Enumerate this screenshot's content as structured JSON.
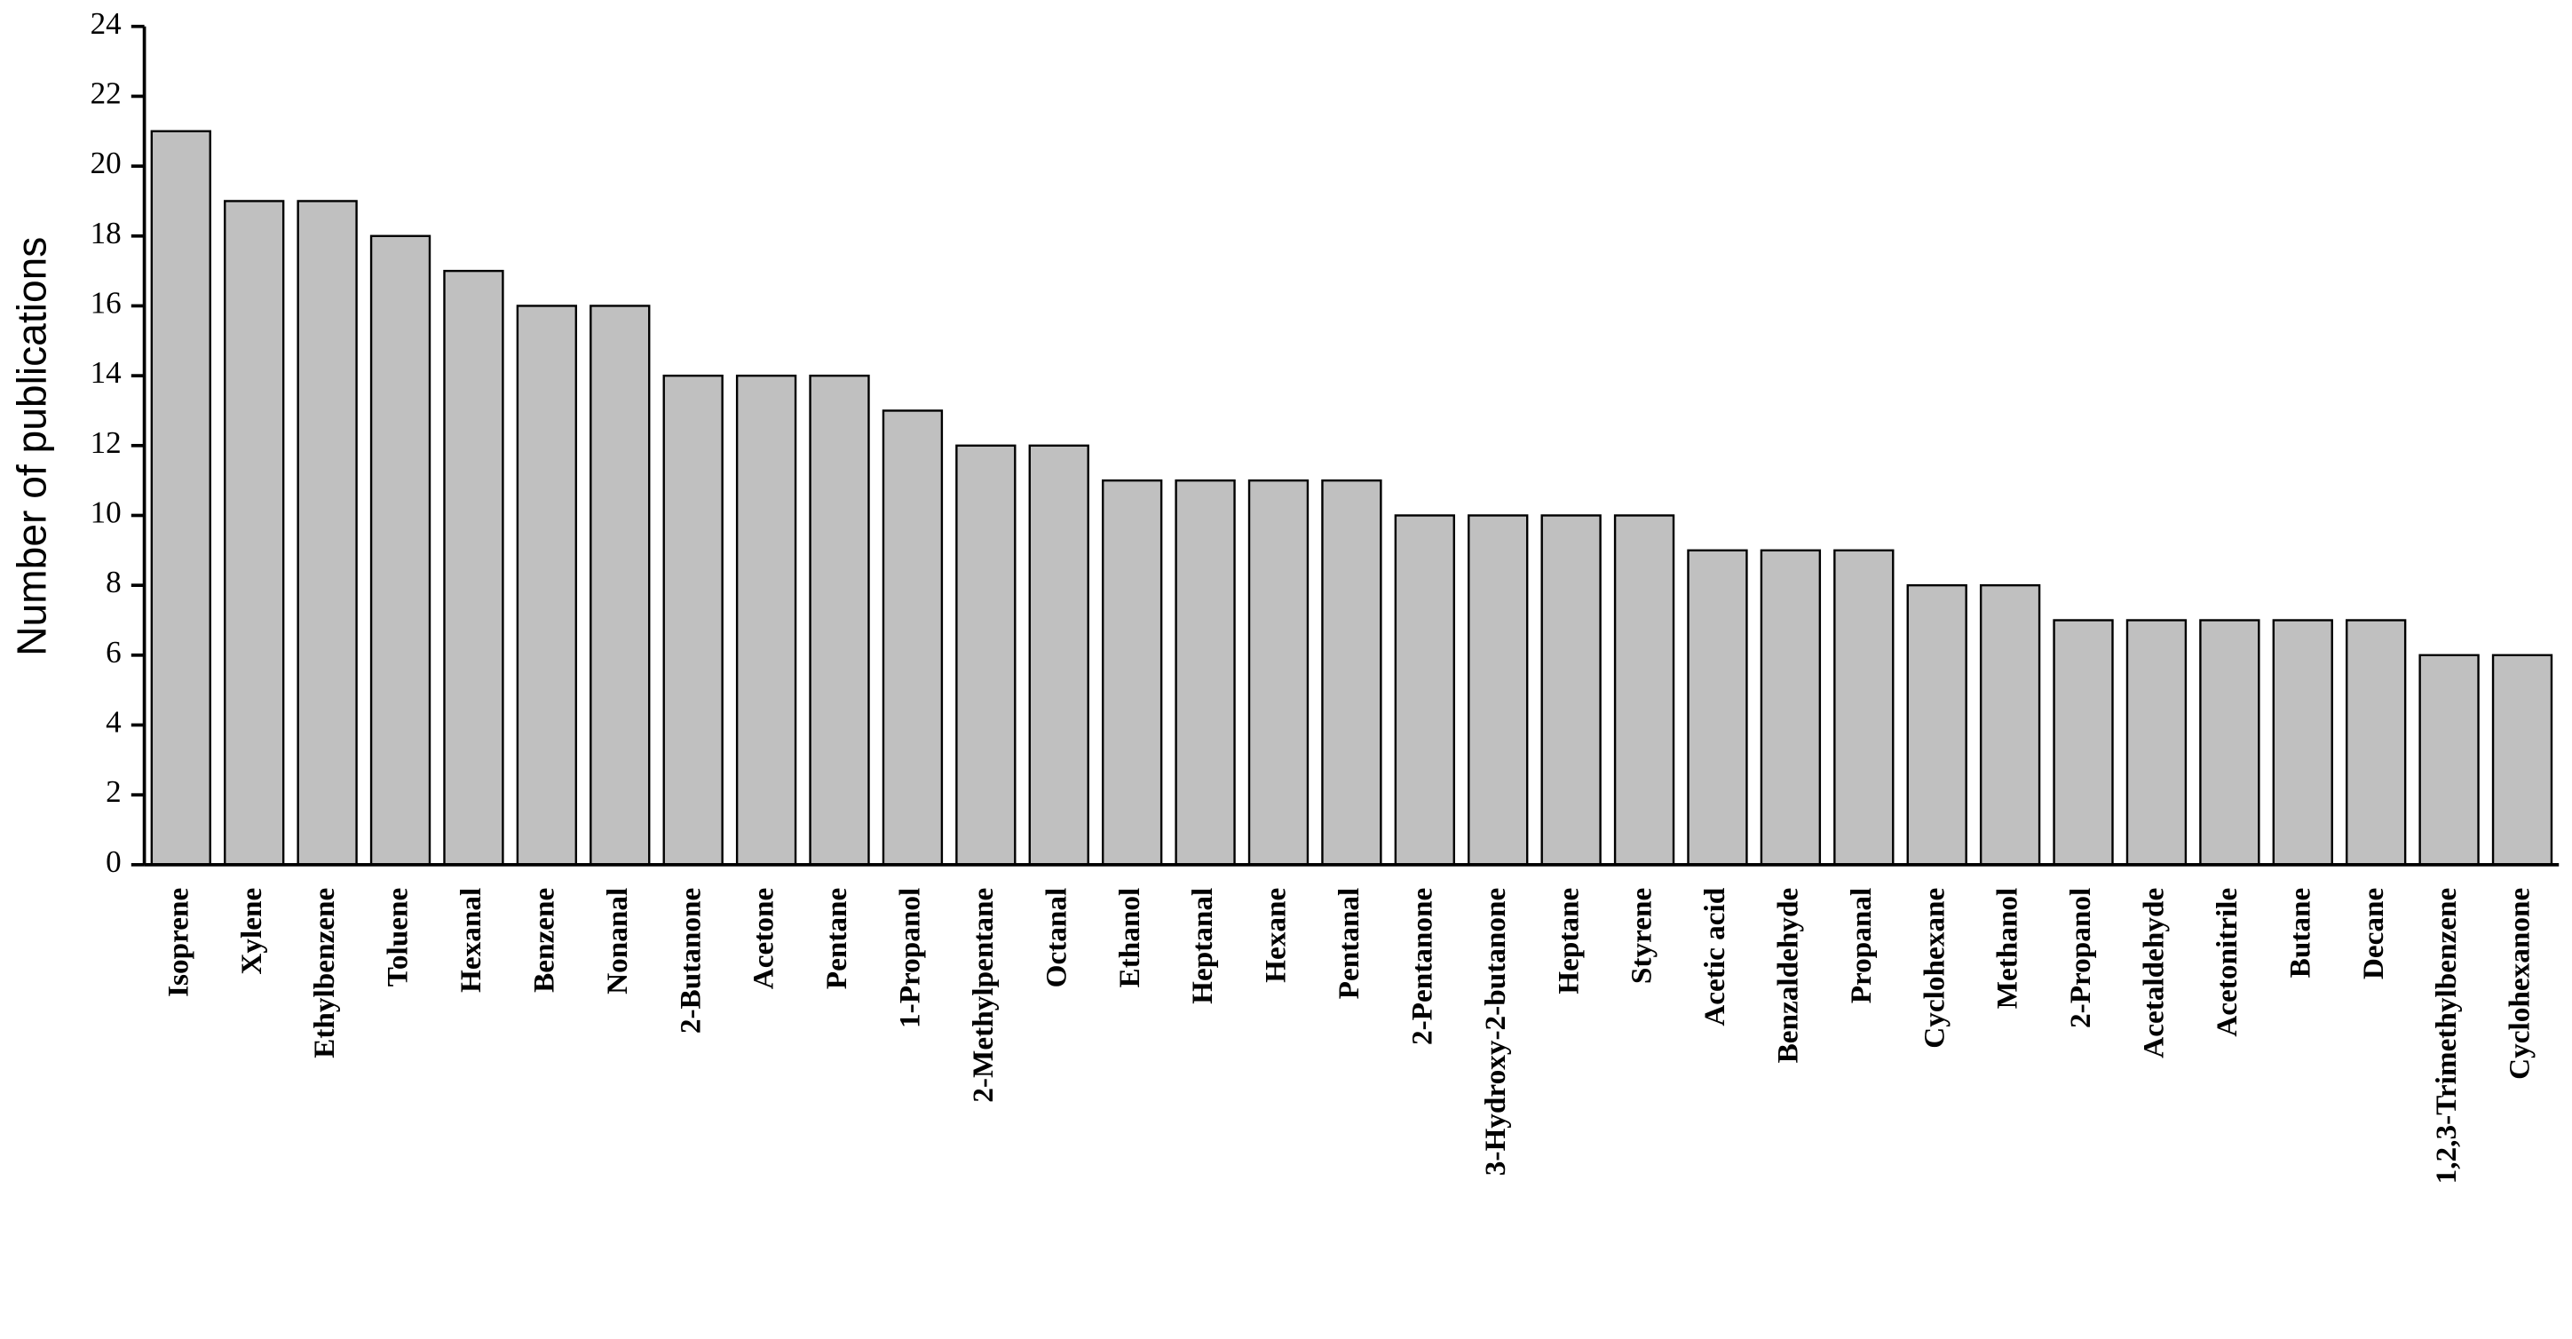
{
  "chart_data": {
    "type": "bar",
    "y_label": "Number of publications",
    "categories": [
      "Isoprene",
      "Xylene",
      "Ethylbenzene",
      "Toluene",
      "Hexanal",
      "Benzene",
      "Nonanal",
      "2-Butanone",
      "Acetone",
      "Pentane",
      "1-Propanol",
      "2-Methylpentane",
      "Octanal",
      "Ethanol",
      "Heptanal",
      "Hexane",
      "Pentanal",
      "2-Pentanone",
      "3-Hydroxy-2-butanone",
      "Heptane",
      "Styrene",
      "Acetic acid",
      "Benzaldehyde",
      "Propanal",
      "Cyclohexane",
      "Methanol",
      "2-Propanol",
      "Acetaldehyde",
      "Acetonitrile",
      "Butane",
      "Decane",
      "1,2,3-Trimethylbenzene",
      "Cyclohexanone"
    ],
    "values": [
      21,
      19,
      19,
      18,
      17,
      16,
      16,
      14,
      14,
      14,
      13,
      12,
      12,
      11,
      11,
      11,
      11,
      10,
      10,
      10,
      10,
      9,
      9,
      9,
      8,
      8,
      7,
      7,
      7,
      7,
      7,
      6,
      6
    ],
    "color": "#c0c0c0",
    "ylim": [
      0,
      24
    ],
    "yticks": [
      0,
      2,
      4,
      6,
      8,
      10,
      12,
      14,
      16,
      18,
      20,
      22,
      24
    ],
    "grid": false
  }
}
